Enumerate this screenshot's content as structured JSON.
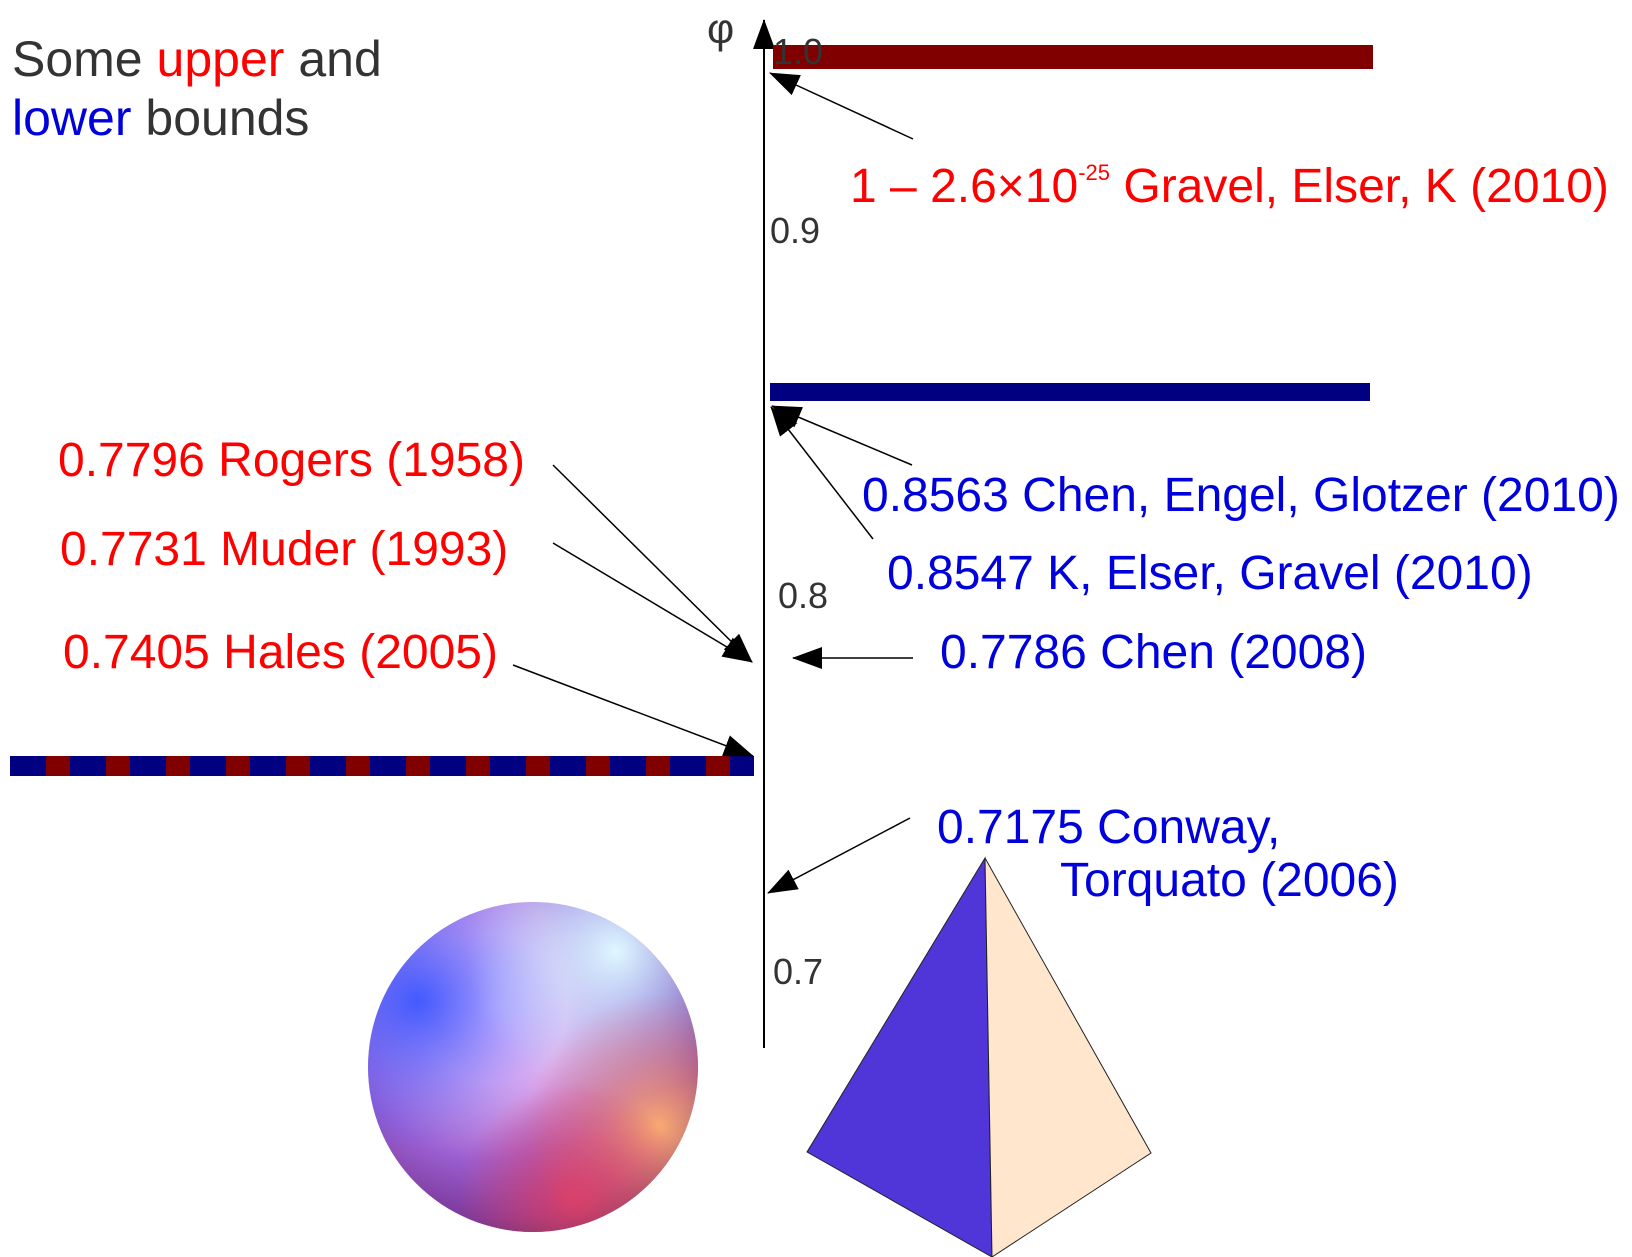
{
  "title": {
    "w1": "Some",
    "w2": "upper",
    "w3": "and",
    "w4": "lower",
    "w5": "bounds"
  },
  "axis": {
    "symbol": "φ",
    "ticks": [
      "1.0",
      "0.9",
      "0.8",
      "0.7"
    ]
  },
  "upper_bounds": [
    {
      "value_text": "1 – 2.6×10",
      "exponent": "-25",
      "rest": " Gravel, Elser, K (2010)"
    },
    {
      "text": "0.7796 Rogers (1958)"
    },
    {
      "text": "0.7731 Muder (1993)"
    },
    {
      "text": "0.7405 Hales (2005)"
    }
  ],
  "lower_bounds": [
    {
      "text": "0.8563 Chen, Engel, Glotzer (2010)"
    },
    {
      "text": "0.8547 K, Elser, Gravel (2010)"
    },
    {
      "text": "0.7786 Chen (2008)"
    },
    {
      "line1": "0.7175 Conway,",
      "line2": "Torquato (2006)"
    }
  ],
  "colors": {
    "upper": "#ff0000",
    "lower": "#0000dd",
    "upper_bar": "#800000",
    "lower_bar": "#000080",
    "text": "#333333",
    "tetra_left": "#5035d8",
    "tetra_right": "#ffe6cc"
  },
  "icons": [
    "sphere",
    "tetrahedron"
  ]
}
